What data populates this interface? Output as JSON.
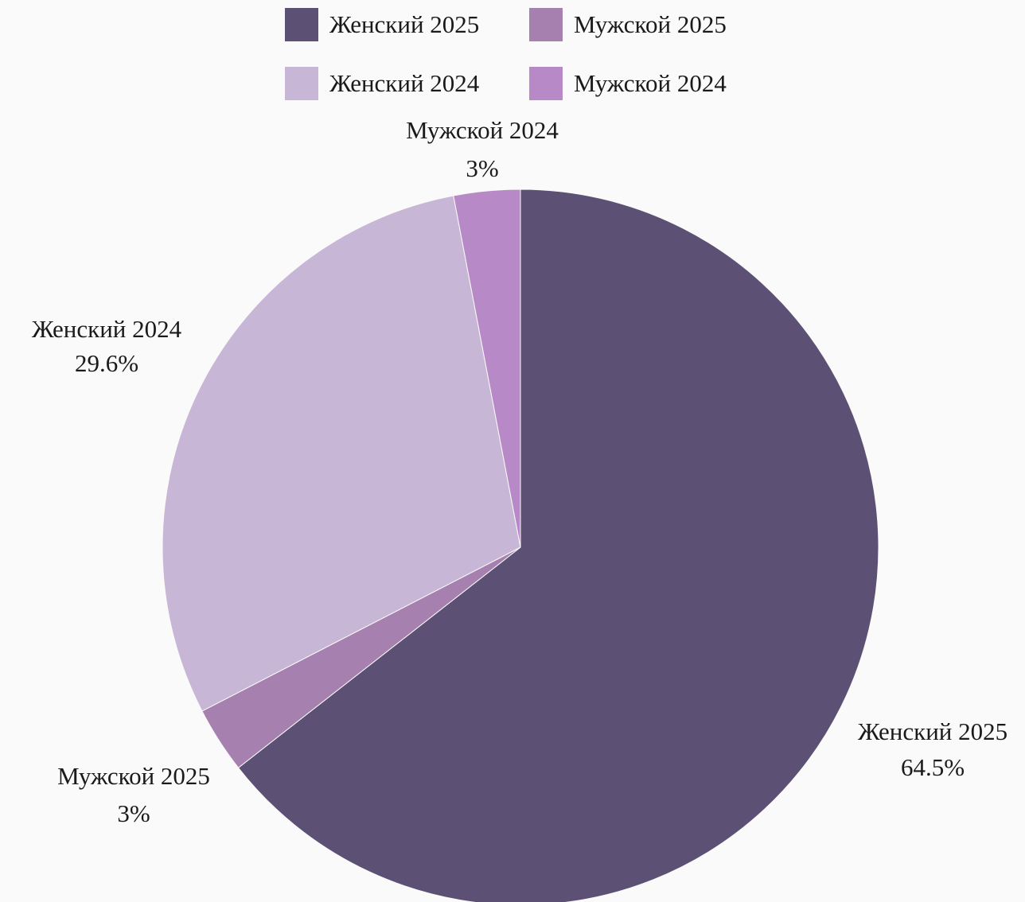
{
  "chart_data": {
    "type": "pie",
    "title": "",
    "slices": [
      {
        "label": "Женский 2025",
        "value": 64.5,
        "display": "64.5%",
        "color": "#5c5074"
      },
      {
        "label": "Мужской 2025",
        "value": 3,
        "display": "3%",
        "color": "#a680ae"
      },
      {
        "label": "Женский 2024",
        "value": 29.6,
        "display": "29.6%",
        "color": "#c7b6d5"
      },
      {
        "label": "Мужской 2024",
        "value": 3,
        "display": "3%",
        "color": "#b789c6"
      }
    ],
    "legend": {
      "placement": "top",
      "entries": [
        "Женский 2025",
        "Мужской 2025",
        "Женский 2024",
        "Мужской 2024"
      ]
    }
  },
  "background_color": "#fafafa"
}
